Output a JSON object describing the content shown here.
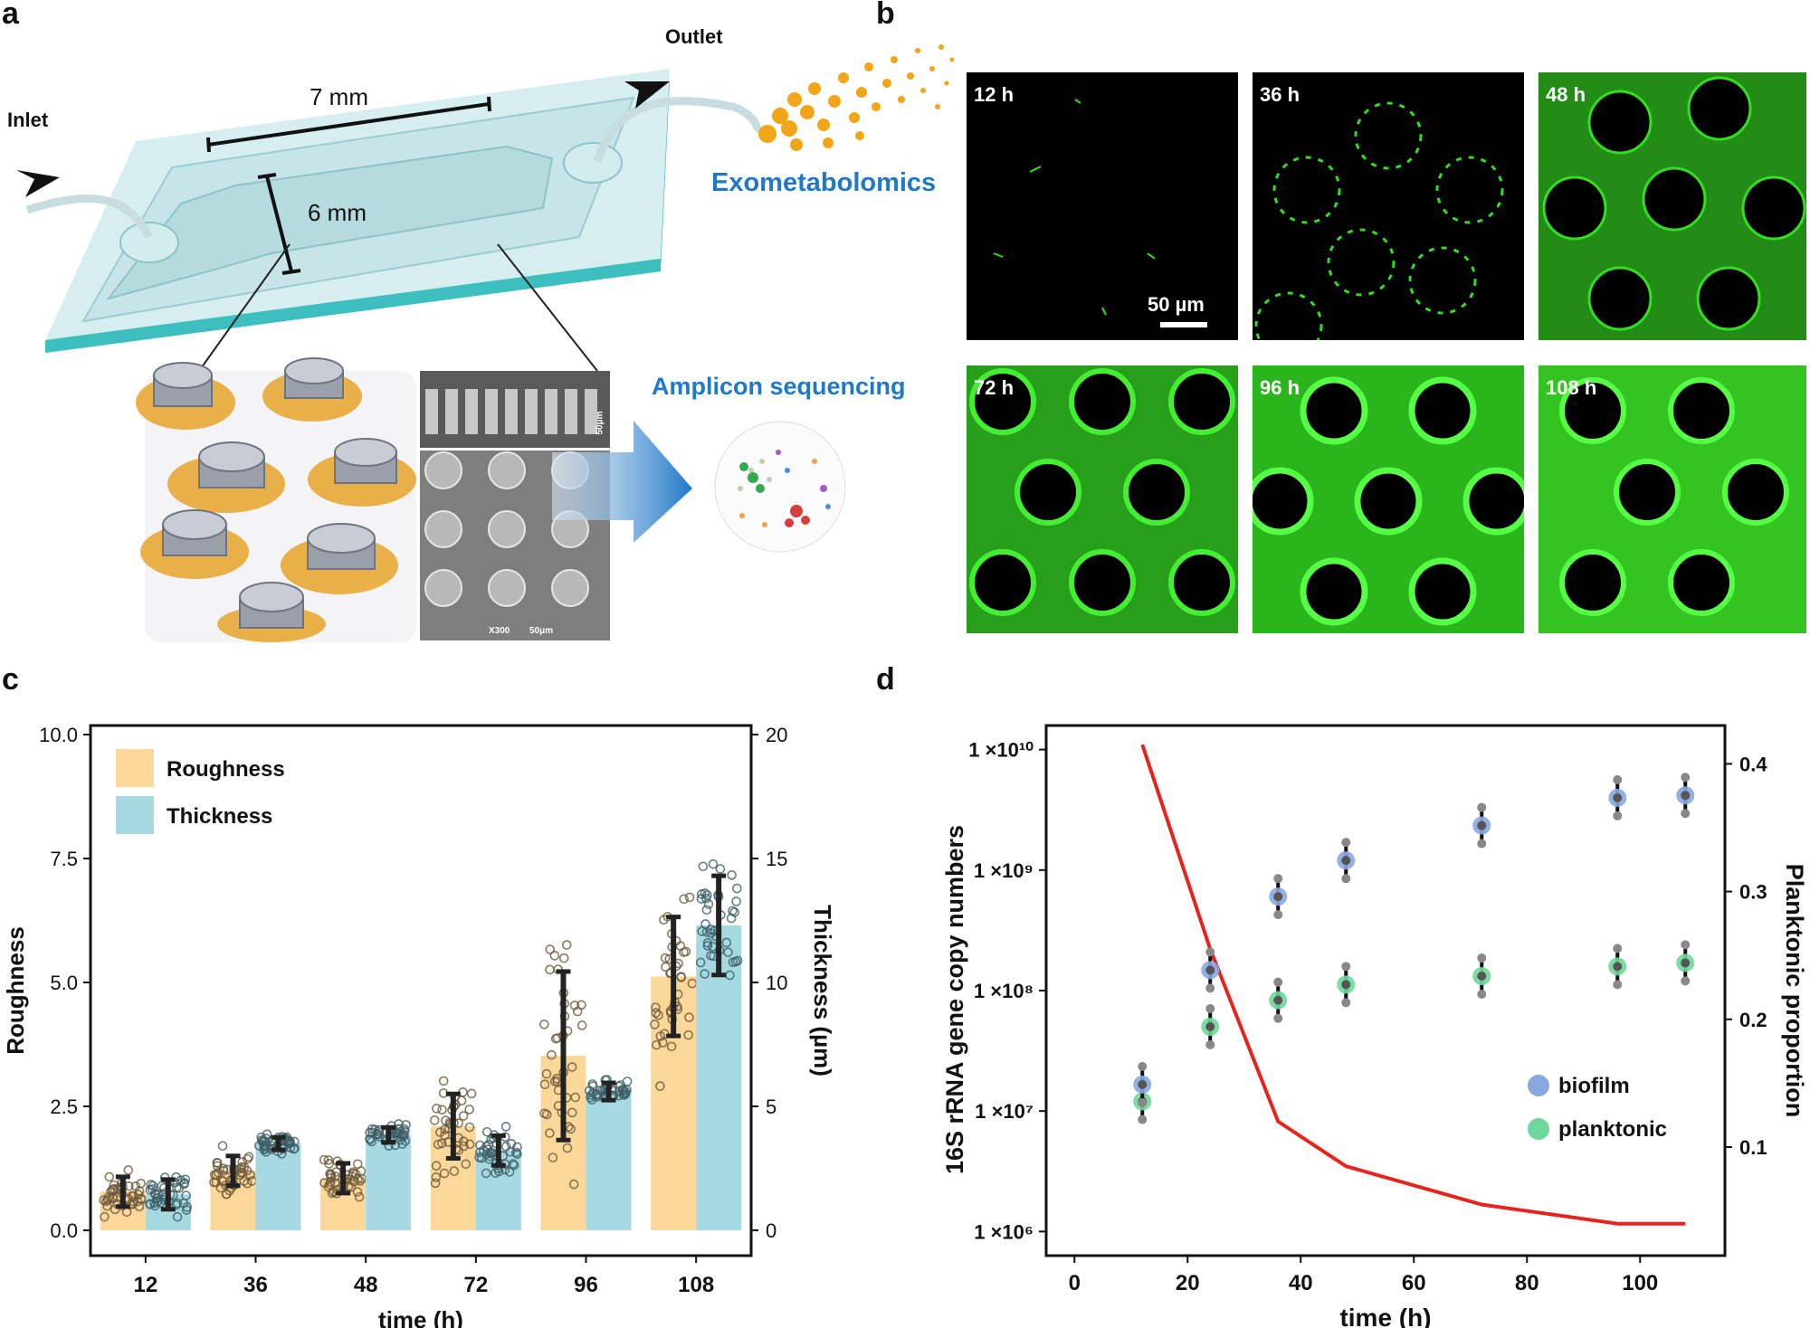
{
  "panels": {
    "a": "a",
    "b": "b",
    "c": "c",
    "d": "d"
  },
  "panel_a": {
    "inlet": "Inlet",
    "outlet": "Outlet",
    "length": "7 mm",
    "width": "6 mm",
    "exometabolomics": "Exometabolomics",
    "amplicon": "Amplicon sequencing",
    "sem_scale_top": "50μm",
    "sem_mag": "X300",
    "sem_scale_bottom": "50μm",
    "colors": {
      "device": "#bfe3e6",
      "glass_edge": "#3dbfbf",
      "bacteria": "#e8a32a",
      "accent_text": "#1f78c8"
    }
  },
  "panel_b": {
    "scale_bar": "50 µm",
    "timepoints": [
      "12 h",
      "36 h",
      "48 h",
      "72 h",
      "96 h",
      "108 h"
    ],
    "fluor_color": "#33dd22"
  },
  "chart_data": [
    {
      "type": "bar",
      "panel": "c",
      "categories": [
        "12",
        "36",
        "48",
        "72",
        "96",
        "108"
      ],
      "xlabel": "time (h)",
      "ylabel": "Roughness",
      "ylabel_right": "Thickness (µm)",
      "ylim": [
        0,
        10
      ],
      "ylim_right": [
        0,
        20
      ],
      "yticks": [
        "0.0",
        "2.5",
        "5.0",
        "7.5",
        "10.0"
      ],
      "yticks_right": [
        "0",
        "5",
        "10",
        "15",
        "20"
      ],
      "series": [
        {
          "name": "Roughness",
          "axis": "left",
          "color": "#fcd79a",
          "values": [
            0.78,
            1.2,
            1.05,
            2.1,
            3.52,
            5.12
          ],
          "sd": [
            0.3,
            0.3,
            0.3,
            0.65,
            1.7,
            1.2
          ]
        },
        {
          "name": "Thickness",
          "axis": "right",
          "color": "#a6d9e2",
          "values": [
            1.45,
            3.5,
            3.85,
            3.22,
            5.6,
            12.3
          ],
          "sd": [
            0.6,
            0.25,
            0.3,
            0.6,
            0.35,
            2.0
          ]
        }
      ],
      "legend": "top-left"
    },
    {
      "type": "scatter",
      "panel": "d",
      "xlabel": "time (h)",
      "ylabel": "16S rRNA gene copy numbers",
      "ylabel_right": "Planktonic proportion",
      "xlim": [
        -5,
        115
      ],
      "xticks": [
        "0",
        "20",
        "40",
        "60",
        "80",
        "100"
      ],
      "ylim_log10": [
        5.8,
        10.2
      ],
      "yticks": [
        "1 ×10⁶",
        "1 ×10⁷",
        "1 ×10⁸",
        "1 ×10⁹",
        "1 ×10¹⁰"
      ],
      "ylim_right": [
        0.015,
        0.43
      ],
      "yticks_right": [
        "0.1",
        "0.2",
        "0.3",
        "0.4"
      ],
      "series": [
        {
          "name": "biofilm",
          "color": "#8aa8e0",
          "x": [
            12,
            24,
            36,
            48,
            72,
            96,
            108
          ],
          "y_log10": [
            7.22,
            8.17,
            8.78,
            9.08,
            9.37,
            9.6,
            9.62
          ]
        },
        {
          "name": "planktonic",
          "color": "#6fd79a",
          "x": [
            12,
            24,
            36,
            48,
            72,
            96,
            108
          ],
          "y_log10": [
            7.08,
            7.7,
            7.92,
            8.05,
            8.12,
            8.2,
            8.23
          ]
        },
        {
          "name": "",
          "type": "line",
          "axis": "right",
          "color": "#e8231c",
          "x": [
            12,
            24,
            36,
            48,
            72,
            96,
            108
          ],
          "y": [
            0.415,
            0.255,
            0.12,
            0.085,
            0.055,
            0.04,
            0.04
          ]
        }
      ],
      "legend": "bottom-right"
    }
  ]
}
